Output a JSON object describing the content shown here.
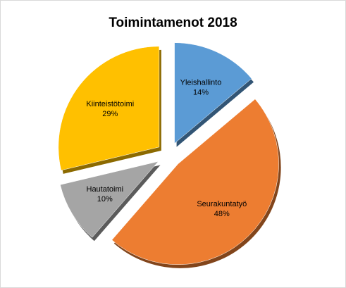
{
  "chart_data": {
    "type": "pie",
    "title": "Toimintamenot 2018",
    "exploded": true,
    "shadow_3d": true,
    "slices": [
      {
        "name": "Yleishallinto",
        "value": 14,
        "label": "14%",
        "color": "#5b9bd5"
      },
      {
        "name": "Seurakuntatyö",
        "value": 48,
        "label": "48%",
        "color": "#ed7d31"
      },
      {
        "name": "Hautatoimi",
        "value": 10,
        "label": "10%",
        "color": "#a5a5a5"
      },
      {
        "name": "Kiinteistötoimi",
        "value": 29,
        "label": "29%",
        "color": "#ffc000"
      }
    ]
  }
}
